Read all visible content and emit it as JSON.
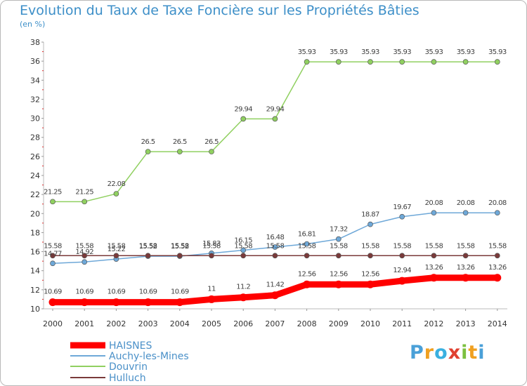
{
  "header": {
    "title": "Evolution du Taux de Taxe Foncière sur les Propriétés Bâties",
    "subtitle": "(en %)"
  },
  "brand": {
    "letters": [
      "P",
      "r",
      "o",
      "x",
      "i",
      "t",
      "i"
    ],
    "colors": [
      "#4aa0d8",
      "#f0a020",
      "#3ab0e0",
      "#e04030",
      "#7cc040",
      "#f0a020",
      "#4aa0d8"
    ]
  },
  "chart_data": {
    "type": "line",
    "title": "Evolution du Taux de Taxe Foncière sur les Propriétés Bâties",
    "ylabel": "(en %)",
    "xlabel": "",
    "x": [
      "2000",
      "2001",
      "2002",
      "2003",
      "2004",
      "2005",
      "2006",
      "2007",
      "2008",
      "2009",
      "2010",
      "2011",
      "2012",
      "2013",
      "2014"
    ],
    "ylim": [
      10,
      38
    ],
    "yticks": [
      "10",
      "12",
      "14",
      "16",
      "18",
      "20",
      "22",
      "24",
      "26",
      "28",
      "30",
      "32",
      "34",
      "36",
      "38"
    ],
    "grid": false,
    "legend_position": "bottom-left",
    "series": [
      {
        "name": "HAISNES",
        "color": "#ff0000",
        "values": [
          10.69,
          10.69,
          10.69,
          10.69,
          10.69,
          11,
          11.2,
          11.42,
          12.56,
          12.56,
          12.56,
          12.94,
          13.26,
          13.26,
          13.26
        ],
        "labels": [
          "10.69",
          "10.69",
          "10.69",
          "10.69",
          "10.69",
          "11",
          "11.2",
          "11.42",
          "12.56",
          "12.56",
          "12.56",
          "12.94",
          "13.26",
          "13.26",
          "13.26"
        ]
      },
      {
        "name": "Auchy-les-Mines",
        "color": "#6ea8d8",
        "values": [
          14.77,
          14.92,
          15.22,
          15.52,
          15.52,
          15.83,
          16.15,
          16.48,
          16.81,
          17.32,
          18.87,
          19.67,
          20.08,
          20.08,
          20.08
        ],
        "labels": [
          "14.77",
          "14.92",
          "15.22",
          "15.52",
          "15.52",
          "15.83",
          "16.15",
          "16.48",
          "16.81",
          "17.32",
          "18.87",
          "19.67",
          "20.08",
          "20.08",
          "20.08"
        ]
      },
      {
        "name": "Douvrin",
        "color": "#90d060",
        "values": [
          21.25,
          21.25,
          22.08,
          26.5,
          26.5,
          26.5,
          29.94,
          29.94,
          35.93,
          35.93,
          35.93,
          35.93,
          35.93,
          35.93,
          35.93
        ],
        "labels": [
          "21.25",
          "21.25",
          "22.08",
          "26.5",
          "26.5",
          "26.5",
          "29.94",
          "29.94",
          "35.93",
          "35.93",
          "35.93",
          "35.93",
          "35.93",
          "35.93",
          "35.93"
        ]
      },
      {
        "name": "Hulluch",
        "color": "#7a3a3a",
        "values": [
          15.58,
          15.58,
          15.58,
          15.58,
          15.58,
          15.58,
          15.58,
          15.58,
          15.58,
          15.58,
          15.58,
          15.58,
          15.58,
          15.58,
          15.58
        ],
        "labels": [
          "15.58",
          "15.58",
          "15.58",
          "15.58",
          "15.58",
          "15.58",
          "15.58",
          "15.58",
          "15.58",
          "15.58",
          "15.58",
          "15.58",
          "15.58",
          "15.58",
          "15.58"
        ]
      }
    ]
  }
}
